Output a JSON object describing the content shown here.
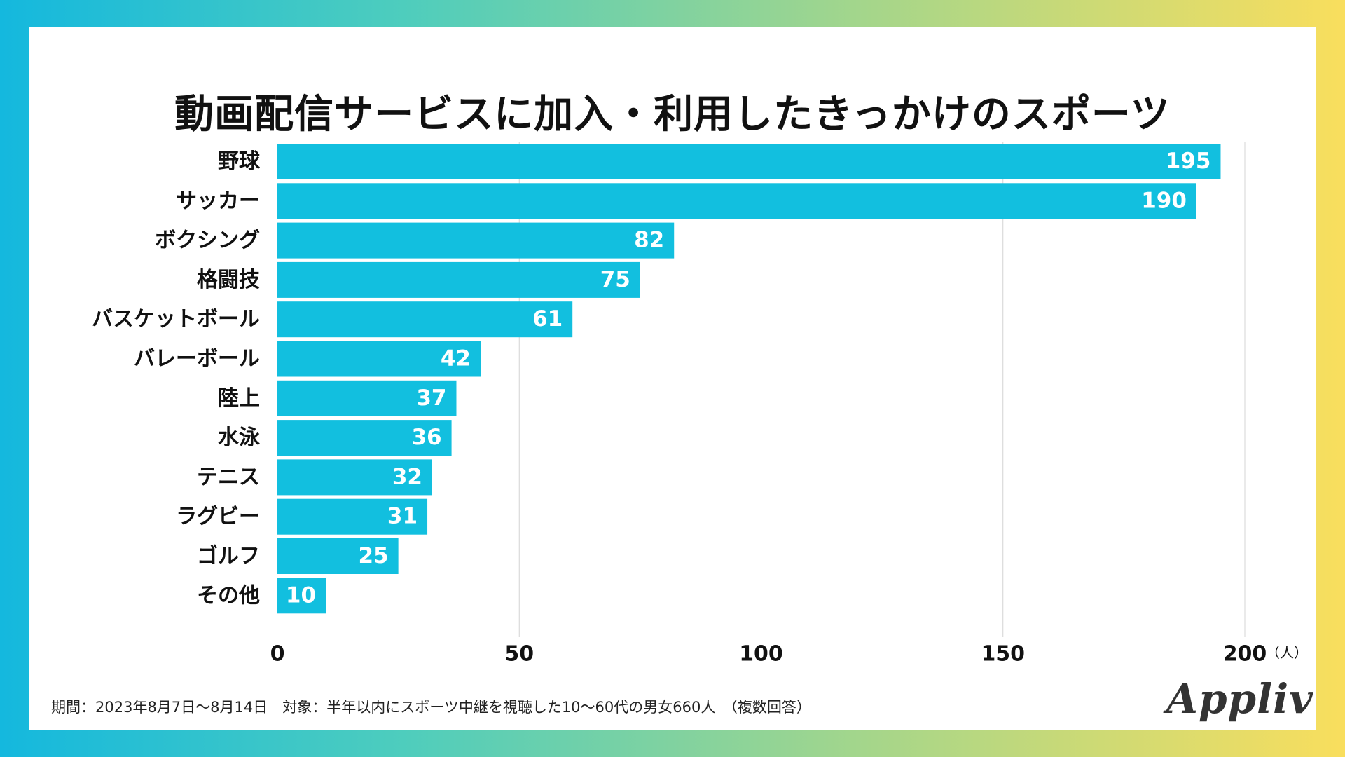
{
  "chart_data": {
    "type": "bar",
    "orientation": "horizontal",
    "title": "動画配信サービスに加入・利用したきっかけのスポーツ",
    "categories": [
      "野球",
      "サッカー",
      "ボクシング",
      "格闘技",
      "バスケットボール",
      "バレーボール",
      "陸上",
      "水泳",
      "テニス",
      "ラグビー",
      "ゴルフ",
      "その他"
    ],
    "values": [
      195,
      190,
      82,
      75,
      61,
      42,
      37,
      36,
      32,
      31,
      25,
      10
    ],
    "xlim": [
      0,
      200
    ],
    "xticks": [
      0,
      50,
      100,
      150,
      200
    ],
    "unit": "（人）",
    "bar_color": "#12bfdf",
    "grid": true
  },
  "footnote": "期間：2023年8月7日〜8月14日　対象：半年以内にスポーツ中継を視聴した10〜60代の男女660人　（複数回答）",
  "brand": "Appliv"
}
